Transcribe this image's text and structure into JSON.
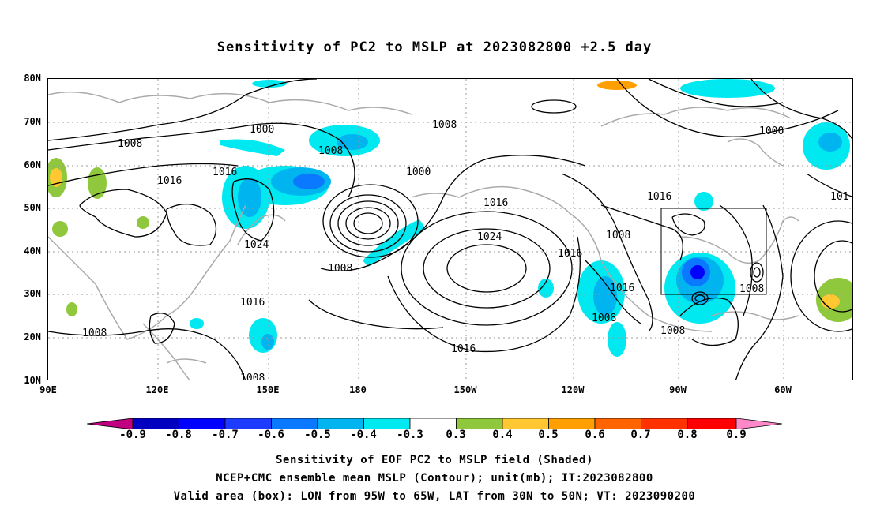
{
  "title": "Sensitivity of PC2 to MSLP at 2023082800 +2.5 day",
  "lat_labels": [
    "80N",
    "70N",
    "60N",
    "50N",
    "40N",
    "30N",
    "20N",
    "10N"
  ],
  "lon_labels": [
    "90E",
    "120E",
    "150E",
    "180",
    "150W",
    "120W",
    "90W",
    "60W"
  ],
  "contour_labels": [
    "1000",
    "1008",
    "1008",
    "1000",
    "1008",
    "1000",
    "1016",
    "1016",
    "1024",
    "1008",
    "1016",
    "1024",
    "1016",
    "1008",
    "1016",
    "1008",
    "1016",
    "1008",
    "1008",
    "1008",
    "1016",
    "101",
    "1008"
  ],
  "colorbar": {
    "labels": [
      "-0.9",
      "-0.8",
      "-0.7",
      "-0.6",
      "-0.5",
      "-0.4",
      "-0.3",
      "0.3",
      "0.4",
      "0.5",
      "0.6",
      "0.7",
      "0.8",
      "0.9"
    ],
    "colors": [
      "#c00080",
      "#0000c0",
      "#0000ff",
      "#1e3cff",
      "#0a78ff",
      "#00b4f0",
      "#00e8f0",
      "#ffffff",
      "#8fc83c",
      "#ffc832",
      "#ffa000",
      "#ff6400",
      "#ff3200",
      "#ff0000",
      "#ff88c8"
    ]
  },
  "captions": [
    "Sensitivity of EOF PC2 to MSLP field (Shaded)",
    "NCEP+CMC ensemble mean MSLP (Contour); unit(mb); IT:2023082800",
    "Valid area (box): LON from 95W to 65W, LAT from 30N to 50N; VT: 2023090200"
  ]
}
